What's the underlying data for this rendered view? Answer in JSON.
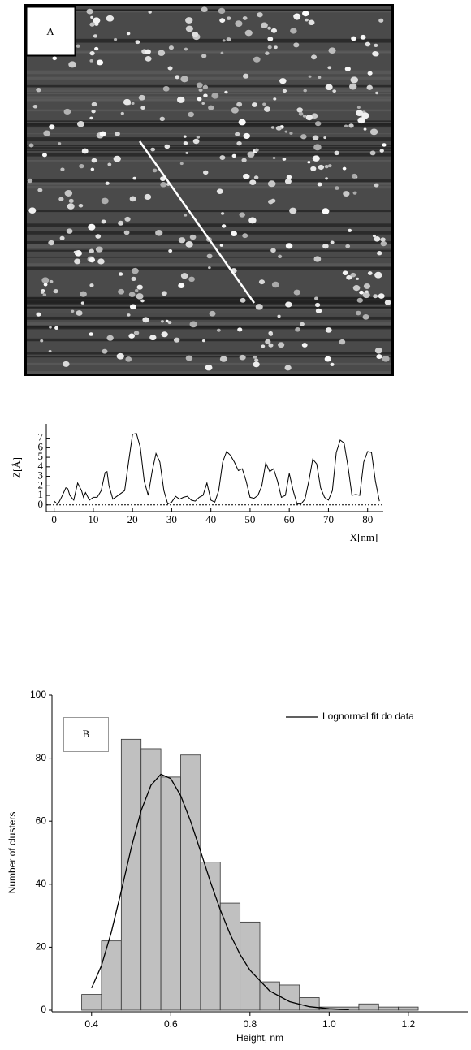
{
  "image_panel": {
    "label": "A"
  },
  "chart_data": [
    {
      "type": "line",
      "x": [
        0,
        0.5,
        1,
        2,
        3,
        3.5,
        4,
        5,
        6,
        7,
        7.5,
        8,
        9,
        10,
        11,
        12,
        13,
        13.5,
        14,
        15,
        16,
        17,
        18,
        19,
        20,
        21,
        22,
        23,
        24,
        25,
        26,
        27,
        28,
        29,
        30,
        31,
        32,
        33,
        34,
        35,
        36,
        37,
        38,
        39,
        40,
        41,
        42,
        43,
        44,
        45,
        46,
        47,
        48,
        49,
        50,
        51,
        52,
        53,
        54,
        55,
        56,
        57,
        58,
        59,
        60,
        61,
        62,
        63,
        64,
        65,
        66,
        67,
        68,
        69,
        70,
        71,
        72,
        73,
        74,
        75,
        76,
        77,
        78,
        79,
        80,
        81,
        82,
        83
      ],
      "values": [
        0.4,
        0.2,
        0.1,
        0.9,
        1.8,
        1.7,
        1.0,
        0.5,
        2.3,
        1.5,
        0.8,
        1.3,
        0.5,
        0.8,
        0.8,
        1.5,
        3.4,
        3.5,
        2.0,
        0.6,
        0.9,
        1.2,
        1.5,
        4.5,
        7.4,
        7.5,
        6.0,
        2.5,
        1.0,
        3.5,
        5.4,
        4.5,
        1.5,
        0.1,
        0.3,
        0.9,
        0.6,
        0.8,
        0.9,
        0.5,
        0.4,
        0.8,
        1.0,
        2.3,
        0.5,
        0.3,
        1.5,
        4.5,
        5.6,
        5.2,
        4.5,
        3.6,
        3.8,
        2.5,
        0.8,
        0.7,
        1.0,
        2.0,
        4.4,
        3.5,
        3.8,
        2.5,
        0.8,
        1.0,
        3.3,
        1.5,
        0.1,
        0.1,
        0.6,
        2.5,
        4.8,
        4.3,
        1.8,
        0.8,
        0.5,
        1.5,
        5.5,
        6.8,
        6.5,
        4.0,
        1.0,
        1.1,
        1.0,
        4.5,
        5.6,
        5.5,
        2.5,
        0.4
      ],
      "color": "#000000",
      "xlim": [
        -2,
        84
      ],
      "ylim": [
        -0.7,
        8.5
      ],
      "xticks": [
        0,
        10,
        20,
        30,
        40,
        50,
        60,
        70,
        80
      ],
      "yticks": [
        0,
        1,
        2,
        3,
        4,
        5,
        6,
        7
      ],
      "x_label": "X[nm]",
      "y_label": "Z[Å]",
      "reference_line": 0
    },
    {
      "type": "histogram",
      "panel_label": "B",
      "bins": [
        0.375,
        0.425,
        0.475,
        0.525,
        0.575,
        0.625,
        0.675,
        0.725,
        0.775,
        0.825,
        0.875,
        0.925,
        0.975,
        1.025,
        1.075,
        1.125,
        1.175,
        1.225
      ],
      "values": [
        5,
        22,
        86,
        83,
        74,
        81,
        47,
        34,
        28,
        9,
        8,
        4,
        1,
        1,
        2,
        1,
        1
      ],
      "color": "#c0c0c0",
      "fit": {
        "name": "Lognormal fit do data",
        "color": "#000000",
        "x": [
          0.4,
          0.425,
          0.45,
          0.475,
          0.5,
          0.525,
          0.55,
          0.575,
          0.6,
          0.625,
          0.65,
          0.675,
          0.7,
          0.725,
          0.75,
          0.775,
          0.8,
          0.85,
          0.9,
          0.95,
          1.0,
          1.05
        ],
        "values": [
          7.0,
          14.2,
          24.8,
          37.8,
          51.4,
          63.3,
          71.4,
          74.9,
          73.5,
          68.1,
          60.0,
          50.5,
          40.8,
          31.9,
          24.1,
          17.7,
          12.7,
          6.1,
          2.7,
          1.1,
          0.46,
          0.18
        ]
      },
      "xlim": [
        0.3,
        1.35
      ],
      "ylim": [
        0,
        100
      ],
      "xticks": [
        0.4,
        0.6,
        0.8,
        {
          "value": 1.0,
          "label": "1.0"
        },
        1.2
      ],
      "yticks": [
        0,
        20,
        40,
        60,
        80,
        100
      ],
      "x_label": "Height, nm",
      "y_label": "Number of clusters"
    }
  ]
}
